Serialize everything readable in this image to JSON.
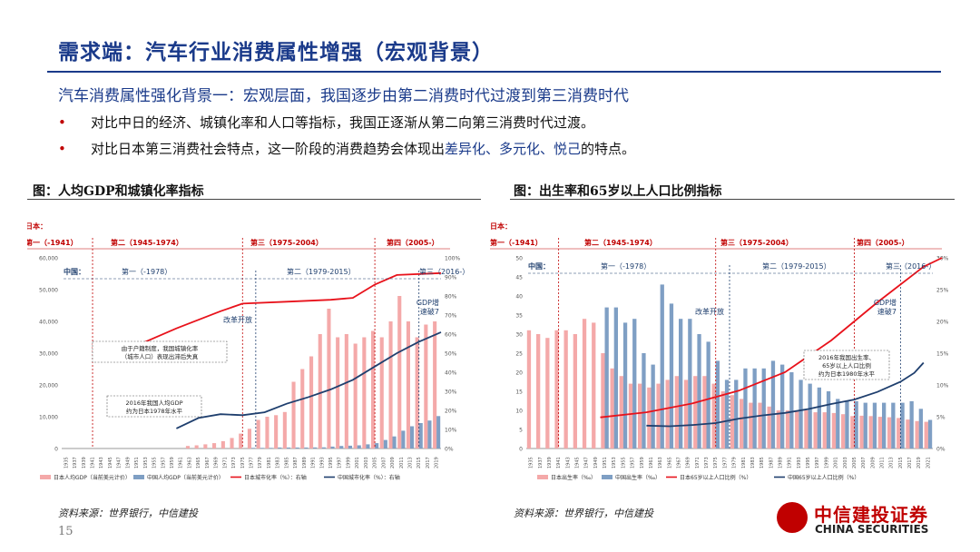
{
  "header": {
    "title": "需求端：汽车行业消费属性增强（宏观背景）",
    "subtitle": "汽车消费属性强化背景一：宏观层面，我国逐步由第二消费时代过渡到第三消费时代"
  },
  "bullets": {
    "b1": "对比中日的经济、城镇化率和人口等指标，我国正逐渐从第二向第三消费时代过渡。",
    "b2_pre": "对比日本第三消费社会特点，这一阶段的消费趋势会体现出",
    "b2_hl": "差异化、多元化、悦己",
    "b2_post": "的特点。",
    "marker": "•"
  },
  "colors": {
    "jp_bar": "#f4a9a9",
    "cn_bar": "#7f9fc4",
    "jp_line": "#e8121b",
    "cn_line": "#1f3f6e",
    "brand": "#c00000",
    "title": "#1a3a8a"
  },
  "chart_data": [
    {
      "type": "bar",
      "title": "图：人均GDP和城镇化率指标",
      "x": [
        1935,
        1937,
        1939,
        1941,
        1943,
        1945,
        1947,
        1949,
        1951,
        1953,
        1955,
        1957,
        1959,
        1961,
        1963,
        1965,
        1967,
        1969,
        1971,
        1973,
        1975,
        1977,
        1979,
        1981,
        1983,
        1985,
        1987,
        1989,
        1991,
        1993,
        1995,
        1997,
        1999,
        2001,
        2003,
        2005,
        2007,
        2009,
        2011,
        2013,
        2015,
        2017,
        2019
      ],
      "ylim_left": [
        0,
        60000
      ],
      "left_ticks": [
        "0",
        "10,000",
        "20,000",
        "30,000",
        "40,000",
        "50,000",
        "60,000"
      ],
      "ylim_right": [
        0,
        100
      ],
      "right_ticks": [
        "0%",
        "10%",
        "20%",
        "30%",
        "40%",
        "50%",
        "60%",
        "70%",
        "80%",
        "90%",
        "100%"
      ],
      "series": [
        {
          "name": "日本人均GDP（当前美元计价）",
          "type": "bar",
          "axis": "left",
          "values": [
            null,
            null,
            null,
            null,
            null,
            null,
            null,
            null,
            null,
            null,
            null,
            null,
            null,
            null,
            800,
            1000,
            1300,
            1700,
            2300,
            3300,
            4700,
            6200,
            9000,
            10000,
            10500,
            11500,
            21000,
            25000,
            29000,
            36000,
            44000,
            35000,
            36000,
            33000,
            35000,
            37000,
            35000,
            40000,
            48000,
            40000,
            35000,
            39000,
            40000
          ]
        },
        {
          "name": "中国人均GDP（当前美元计价）",
          "type": "bar",
          "axis": "left",
          "values": [
            null,
            null,
            null,
            null,
            null,
            null,
            null,
            null,
            null,
            null,
            null,
            null,
            null,
            null,
            null,
            null,
            null,
            null,
            null,
            null,
            null,
            200,
            200,
            200,
            300,
            300,
            300,
            300,
            350,
            380,
            600,
            800,
            900,
            1000,
            1300,
            1700,
            2700,
            3800,
            5600,
            7000,
            8000,
            8800,
            10200
          ]
        },
        {
          "name": "日本城市化率（%）：右轴",
          "type": "line",
          "axis": "right",
          "x": [
            1950,
            1960,
            1970,
            1975,
            1985,
            1995,
            2000,
            2005,
            2010,
            2020
          ],
          "values": [
            53,
            63,
            72,
            76,
            77,
            78,
            79,
            86,
            91,
            92
          ]
        },
        {
          "name": "中国城市化率（%）：右轴",
          "type": "line",
          "axis": "right",
          "x": [
            1960,
            1965,
            1970,
            1975,
            1980,
            1985,
            1990,
            1995,
            2000,
            2005,
            2010,
            2015,
            2020
          ],
          "values": [
            10.5,
            16,
            18,
            17.5,
            19,
            23.5,
            27,
            31,
            36,
            43,
            50,
            56,
            61
          ]
        }
      ],
      "era_labels": {
        "jp_prefix": "日本：",
        "jp": [
          "第一（-1941）",
          "第二（1945-1974）",
          "第三（1975-2004）",
          "第四（2005-）"
        ],
        "cn_prefix": "中国：",
        "cn": [
          "第一（-1978）",
          "第二（1979-2015）",
          "第三（2016-）"
        ]
      },
      "annotations": {
        "reform": "改革开放",
        "gdp": "GDP增速破7",
        "note1": [
          "由于户籍制度，我国城镇化率",
          "（城市人口）表现出滞后失真"
        ],
        "note2": [
          "2016年我国人均GDP",
          "约为日本1978年水平"
        ]
      },
      "legend": "bottom"
    },
    {
      "type": "bar",
      "title": "图：出生率和65岁以上人口比例指标",
      "x": [
        1935,
        1937,
        1939,
        1941,
        1943,
        1945,
        1947,
        1949,
        1951,
        1953,
        1955,
        1957,
        1959,
        1961,
        1963,
        1965,
        1967,
        1969,
        1971,
        1973,
        1975,
        1977,
        1979,
        1981,
        1983,
        1985,
        1987,
        1989,
        1991,
        1993,
        1995,
        1997,
        1999,
        2001,
        2003,
        2005,
        2007,
        2009,
        2011,
        2013,
        2015,
        2017,
        2019,
        2021
      ],
      "ylim_left": [
        0,
        50
      ],
      "left_ticks": [
        "0",
        "5",
        "10",
        "15",
        "20",
        "25",
        "30",
        "35",
        "40",
        "45",
        "50"
      ],
      "ylim_right": [
        0,
        30
      ],
      "right_ticks": [
        "0%",
        "5%",
        "10%",
        "15%",
        "20%",
        "25%",
        "30%"
      ],
      "series": [
        {
          "name": "日本出生率（‰）",
          "type": "bar",
          "axis": "left",
          "values": [
            31,
            30,
            29,
            31,
            31,
            30,
            34,
            33,
            25,
            21,
            19,
            17,
            17,
            16,
            17,
            18,
            19,
            18,
            19,
            19,
            17,
            15,
            14,
            13,
            12,
            12,
            11,
            10,
            10,
            10,
            10,
            9.5,
            9.5,
            9.3,
            9,
            8.5,
            8.6,
            8.5,
            8.3,
            8.2,
            8,
            7.6,
            7.2,
            7
          ]
        },
        {
          "name": "中国出生率（‰）",
          "type": "bar",
          "axis": "left",
          "values": [
            null,
            null,
            null,
            null,
            null,
            null,
            null,
            null,
            37,
            37,
            33,
            34,
            25,
            22,
            43,
            38,
            34,
            34,
            30,
            28,
            23,
            18,
            18,
            21,
            21,
            21,
            23,
            22,
            20,
            18,
            17,
            16,
            15,
            13,
            12.4,
            12.4,
            12,
            12,
            12,
            12,
            12,
            12.4,
            10.4,
            7.5
          ]
        },
        {
          "name": "日本65岁以上人口比例（%）",
          "type": "line",
          "axis": "right",
          "x": [
            1950,
            1960,
            1970,
            1980,
            1990,
            2000,
            2010,
            2020,
            2024
          ],
          "values": [
            4.9,
            5.7,
            7.1,
            9.1,
            12,
            17,
            23,
            28.6,
            30
          ]
        },
        {
          "name": "中国65岁以上人口比例（%）",
          "type": "line",
          "axis": "right",
          "x": [
            1960,
            1965,
            1970,
            1975,
            1980,
            1985,
            1990,
            1995,
            2000,
            2005,
            2010,
            2015,
            2018,
            2020
          ],
          "values": [
            3.6,
            3.5,
            3.7,
            4,
            4.7,
            5.2,
            5.6,
            6.2,
            7,
            7.7,
            8.9,
            10.5,
            11.9,
            13.5
          ]
        }
      ],
      "era_labels": {
        "jp_prefix": "日本：",
        "jp": [
          "第一（-1941）",
          "第二（1945-1974）",
          "第三（1975-2004）",
          "第四（2005-）"
        ],
        "cn_prefix": "中国：",
        "cn": [
          "第一（-1978）",
          "第二（1979-2015）",
          "第三（2016-）"
        ]
      },
      "annotations": {
        "reform": "改革开放",
        "gdp": "GDP增速破7",
        "note": [
          "2016年我国出生率、",
          "65岁以上人口比例",
          "约为日本1980年水平"
        ]
      },
      "legend": "bottom"
    }
  ],
  "footer": {
    "source1": "资料来源：世界银行，中信建投",
    "source2": "资料来源：世界银行，中信建投",
    "page": "15",
    "logo_cn": "中信建投证券",
    "logo_en": "CHINA SECURITIES"
  }
}
